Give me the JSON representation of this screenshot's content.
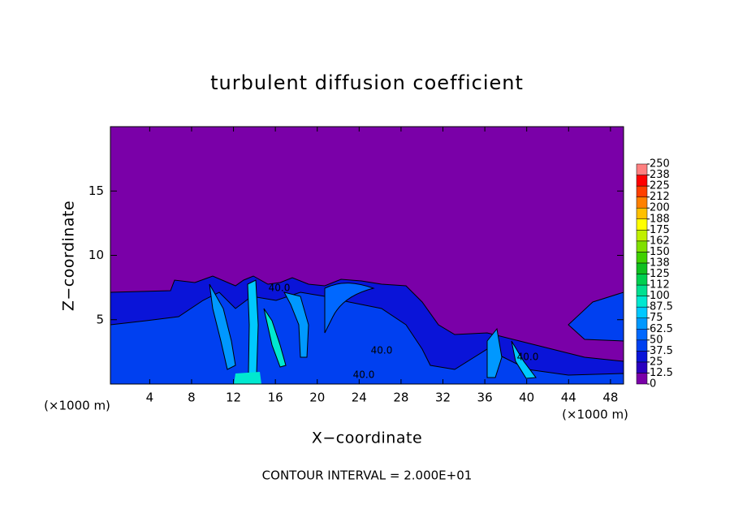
{
  "chart_data": {
    "type": "contour",
    "title": "turbulent diffusion coefficient",
    "x_label": "X−coordinate",
    "y_label": "Z−coordinate",
    "x_unit_left": "(×1000 m)",
    "x_unit_right": "(×1000 m)",
    "footnote": "CONTOUR INTERVAL = 2.000E+01",
    "contour_labels": [
      "40.0",
      "40.0",
      "40.0",
      "40.0"
    ],
    "xlim": [
      0.25,
      49.25
    ],
    "xticks": [
      4,
      8,
      12,
      16,
      20,
      24,
      28,
      32,
      36,
      40,
      44,
      48
    ],
    "ylim": [
      0,
      20
    ],
    "yticks": [
      5,
      10,
      15
    ],
    "colorbar": {
      "lim": [
        0,
        250
      ],
      "ticks": [
        0,
        {
          "value": 12.5,
          "label": "12.5"
        },
        25,
        {
          "value": 37.5,
          "label": "37.5"
        },
        50,
        {
          "value": 62.5,
          "label": "62.5"
        },
        75,
        {
          "value": 87.5,
          "label": "87.5"
        },
        100,
        {
          "value": 112.5,
          "label": "112"
        },
        125,
        {
          "value": 137.5,
          "label": "138"
        },
        150,
        {
          "value": 162.5,
          "label": "162"
        },
        175,
        {
          "value": 187.5,
          "label": "188"
        },
        200,
        {
          "value": 212.5,
          "label": "212"
        },
        225,
        {
          "value": 237.5,
          "label": "238"
        },
        250
      ],
      "colors": [
        "#7a00a8",
        "#2a00c0",
        "#0a14d8",
        "#0040f0",
        "#0068ff",
        "#0098ff",
        "#00c8ff",
        "#00e8d0",
        "#00e090",
        "#00d050",
        "#10c020",
        "#40d000",
        "#80e000",
        "#c0f000",
        "#ffff00",
        "#ffc000",
        "#ff8000",
        "#ff4000",
        "#ff0000",
        "#ff8080"
      ]
    }
  }
}
